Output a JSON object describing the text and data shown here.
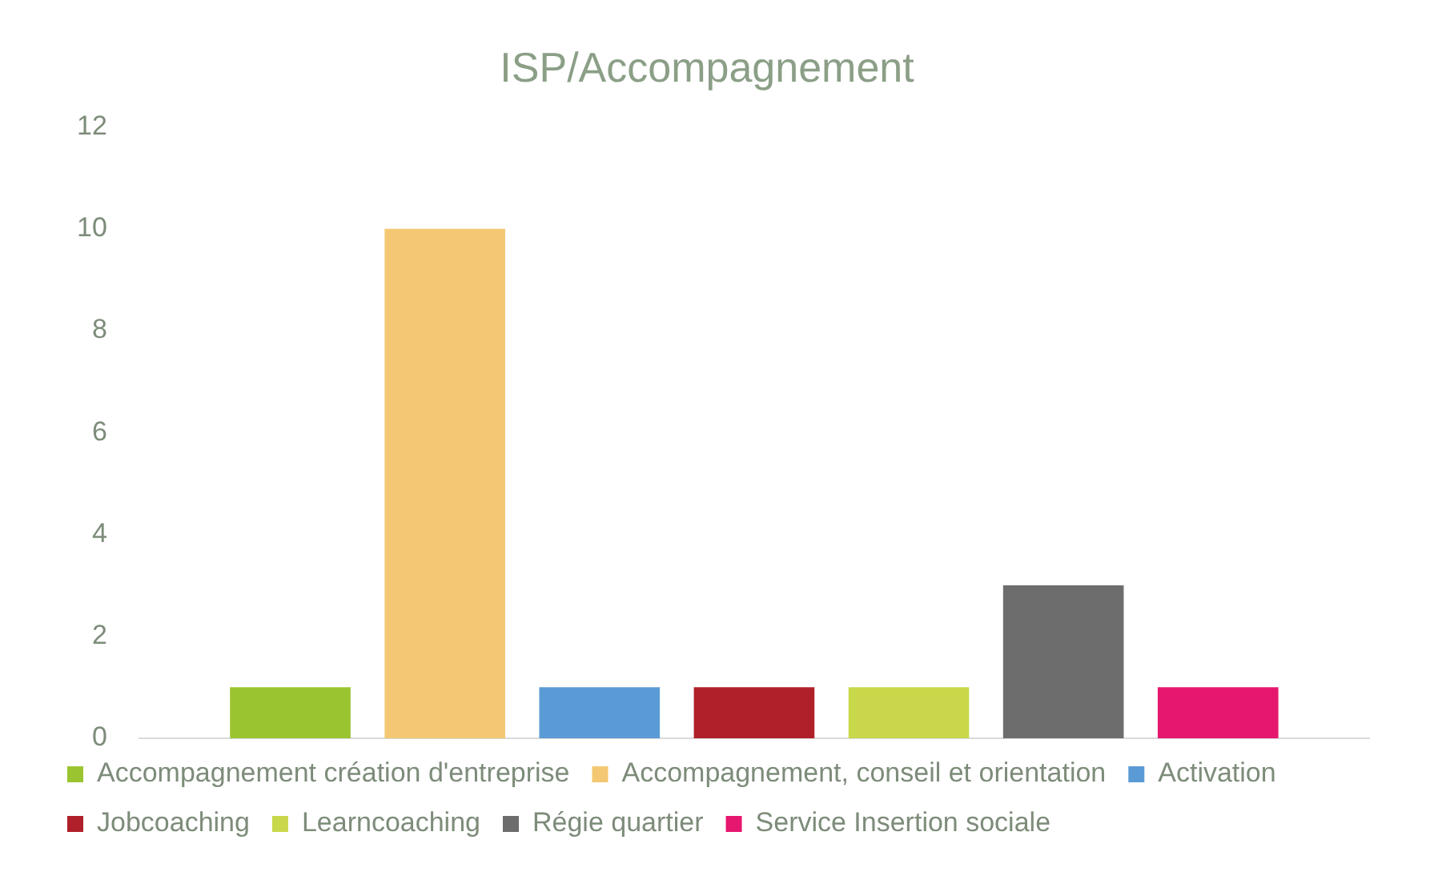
{
  "chart_data": {
    "type": "bar",
    "title": "ISP/Accompagnement",
    "categories": [
      null
    ],
    "series": [
      {
        "name": "Accompagnement création d'entreprise",
        "color": "#9bc431",
        "values": [
          1
        ]
      },
      {
        "name": "Accompagnement, conseil et orientation",
        "color": "#f4c872",
        "values": [
          10
        ]
      },
      {
        "name": "Activation",
        "color": "#5b9bd5",
        "values": [
          1
        ]
      },
      {
        "name": "Jobcoaching",
        "color": "#b0202a",
        "values": [
          1
        ]
      },
      {
        "name": "Learncoaching",
        "color": "#c9d84b",
        "values": [
          1
        ]
      },
      {
        "name": "Régie quartier",
        "color": "#6d6d6d",
        "values": [
          3
        ]
      },
      {
        "name": "Service Insertion sociale",
        "color": "#e6176f",
        "values": [
          1
        ]
      }
    ],
    "ylim": [
      0,
      12
    ],
    "yticks": [
      0,
      2,
      4,
      6,
      8,
      10,
      12
    ],
    "grid": false,
    "legend": "bottom"
  }
}
